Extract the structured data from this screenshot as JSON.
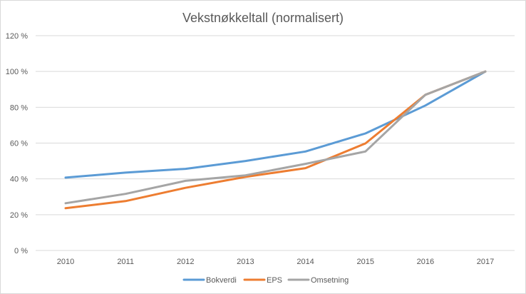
{
  "chart_data": {
    "type": "line",
    "title": "Vekstnøkkeltall (normalisert)",
    "x": [
      "2010",
      "2011",
      "2012",
      "2013",
      "2014",
      "2015",
      "2016",
      "2017"
    ],
    "y_ticks": [
      "0 %",
      "20 %",
      "40 %",
      "60 %",
      "80 %",
      "100 %",
      "120 %"
    ],
    "ylim": [
      0,
      120
    ],
    "grid": true,
    "legend_position": "bottom",
    "series": [
      {
        "name": "Bokverdi",
        "color": "#5b9bd5",
        "values": [
          40.7,
          43.5,
          45.6,
          50.0,
          55.3,
          65.4,
          81.0,
          100.0
        ]
      },
      {
        "name": "EPS",
        "color": "#ed7d31",
        "values": [
          23.6,
          27.6,
          35.0,
          41.1,
          46.0,
          59.8,
          87.0,
          100.0
        ]
      },
      {
        "name": "Omsetning",
        "color": "#a5a5a5",
        "values": [
          26.4,
          31.6,
          38.9,
          42.0,
          48.4,
          55.3,
          87.0,
          100.0
        ]
      }
    ]
  }
}
